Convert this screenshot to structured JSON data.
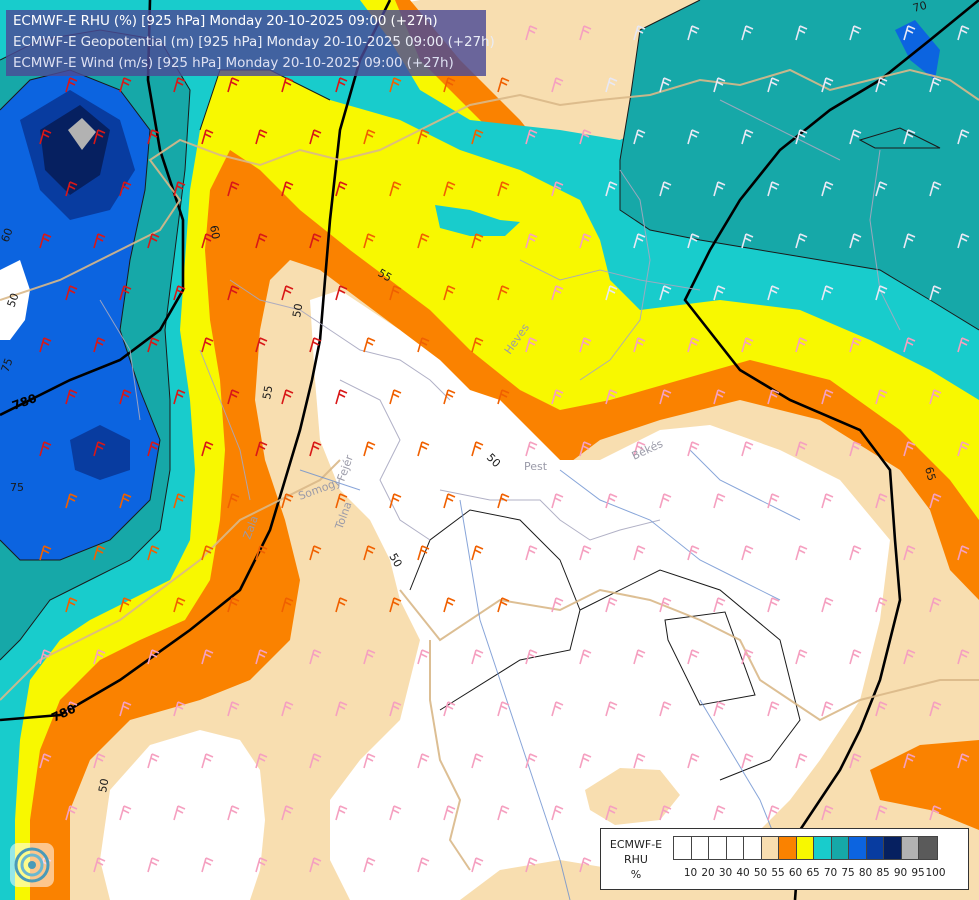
{
  "title_lines": [
    "ECMWF-E RHU (%) [925 hPa] Monday 20-10-2025 09:00 (+27h)",
    "ECMWF-E Geopotential (m) [925 hPa] Monday 20-10-2025 09:00 (+27h)",
    "ECMWF-E Wind (m/s) [925 hPa] Monday 20-10-2025 09:00 (+27h)"
  ],
  "legend": {
    "title": [
      "ECMWF-E",
      "RHU",
      "%"
    ],
    "colors": [
      "#ffffff",
      "#ffffff",
      "#ffffff",
      "#ffffff",
      "#ffffff",
      "#f8deb0",
      "#fa8200",
      "#f8f800",
      "#18cccc",
      "#16a8a8",
      "#0c64e0",
      "#083ca0",
      "#062060",
      "#b2b2b2",
      "#5a5a5a"
    ],
    "labels": [
      "10",
      "20",
      "30",
      "40",
      "50",
      "55",
      "60",
      "65",
      "70",
      "75",
      "80",
      "85",
      "90",
      "95",
      "100"
    ]
  },
  "contour_labels": [
    {
      "text": "60"
    },
    {
      "text": "50"
    },
    {
      "text": "75"
    },
    {
      "text": "75"
    },
    {
      "text": "60"
    },
    {
      "text": "50"
    },
    {
      "text": "55"
    },
    {
      "text": "55"
    },
    {
      "text": "50"
    },
    {
      "text": "65"
    },
    {
      "text": "50"
    },
    {
      "text": "50"
    },
    {
      "text": "70"
    }
  ],
  "geopotential_labels": [
    {
      "text": "780"
    },
    {
      "text": "780"
    }
  ],
  "place_labels": [
    {
      "text": "Pest"
    },
    {
      "text": "Heves"
    },
    {
      "text": "Békés"
    },
    {
      "text": "Somogy"
    },
    {
      "text": "Fejér"
    },
    {
      "text": "Tolna"
    },
    {
      "text": "Zala"
    }
  ],
  "colors": {
    "title_bg": "#4b4b96",
    "title_text": "#ffffff",
    "border": "#d2b48c",
    "river": "#6a8fd0",
    "wind_red": "#d81818",
    "wind_orange": "#f06000",
    "wind_pink": "#f5a0c0",
    "wind_grey": "#c8c8e8"
  }
}
